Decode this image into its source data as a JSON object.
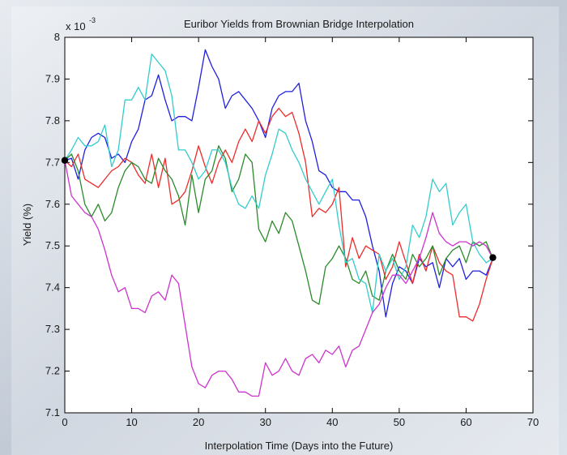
{
  "chart_data": {
    "type": "line",
    "title": "Euribor Yields from Brownian Bridge Interpolation",
    "xlabel": "Interpolation Time (Days into the Future)",
    "ylabel": "Yield (%)",
    "y_multiplier_label": "x 10",
    "y_multiplier_exponent": "-3",
    "xlim": [
      0,
      70
    ],
    "ylim": [
      7.1,
      8.0
    ],
    "x_ticks": [
      0,
      10,
      20,
      30,
      40,
      50,
      60,
      70
    ],
    "x_tick_labels": [
      "0",
      "10",
      "20",
      "30",
      "40",
      "50",
      "60",
      "70"
    ],
    "y_ticks": [
      7.1,
      7.2,
      7.3,
      7.4,
      7.5,
      7.6,
      7.7,
      7.8,
      7.9,
      8.0
    ],
    "y_tick_labels": [
      "7.1",
      "7.2",
      "7.3",
      "7.4",
      "7.5",
      "7.6",
      "7.7",
      "7.8",
      "7.9",
      "8"
    ],
    "grid": false,
    "legend": "none",
    "series": [
      {
        "color": "#1f1fe0",
        "x": [
          0,
          1,
          2,
          3,
          4,
          5,
          6,
          7,
          8,
          9,
          10,
          11,
          12,
          13,
          14,
          15,
          16,
          17,
          18,
          19,
          20,
          21,
          22,
          23,
          24,
          25,
          26,
          27,
          28,
          29,
          30,
          31,
          32,
          33,
          34,
          35,
          36,
          37,
          38,
          39,
          40,
          41,
          42,
          43,
          44,
          45,
          46,
          47,
          48,
          49,
          50,
          51,
          52,
          53,
          54,
          55,
          56,
          57,
          58,
          59,
          60,
          61,
          62,
          63,
          64
        ],
        "y": [
          7.705,
          7.71,
          7.66,
          7.73,
          7.76,
          7.77,
          7.76,
          7.71,
          7.72,
          7.7,
          7.75,
          7.78,
          7.85,
          7.86,
          7.91,
          7.85,
          7.8,
          7.81,
          7.81,
          7.8,
          7.88,
          7.97,
          7.93,
          7.9,
          7.83,
          7.86,
          7.87,
          7.85,
          7.83,
          7.8,
          7.76,
          7.83,
          7.86,
          7.87,
          7.87,
          7.89,
          7.8,
          7.75,
          7.68,
          7.67,
          7.64,
          7.63,
          7.63,
          7.61,
          7.61,
          7.57,
          7.5,
          7.44,
          7.33,
          7.41,
          7.45,
          7.44,
          7.41,
          7.47,
          7.45,
          7.46,
          7.4,
          7.47,
          7.45,
          7.47,
          7.42,
          7.44,
          7.44,
          7.43,
          7.47
        ]
      },
      {
        "color": "#ee2b2b",
        "x": [
          0,
          1,
          2,
          3,
          4,
          5,
          6,
          7,
          8,
          9,
          10,
          11,
          12,
          13,
          14,
          15,
          16,
          17,
          18,
          19,
          20,
          21,
          22,
          23,
          24,
          25,
          26,
          27,
          28,
          29,
          30,
          31,
          32,
          33,
          34,
          35,
          36,
          37,
          38,
          39,
          40,
          41,
          42,
          43,
          44,
          45,
          46,
          47,
          48,
          49,
          50,
          51,
          52,
          53,
          54,
          55,
          56,
          57,
          58,
          59,
          60,
          61,
          62,
          63,
          64
        ],
        "y": [
          7.705,
          7.69,
          7.72,
          7.66,
          7.65,
          7.64,
          7.66,
          7.68,
          7.69,
          7.71,
          7.7,
          7.67,
          7.65,
          7.72,
          7.64,
          7.71,
          7.6,
          7.61,
          7.63,
          7.68,
          7.74,
          7.69,
          7.65,
          7.7,
          7.73,
          7.7,
          7.75,
          7.78,
          7.75,
          7.8,
          7.77,
          7.81,
          7.83,
          7.81,
          7.82,
          7.77,
          7.7,
          7.57,
          7.59,
          7.58,
          7.6,
          7.64,
          7.45,
          7.52,
          7.47,
          7.5,
          7.49,
          7.48,
          7.42,
          7.45,
          7.51,
          7.46,
          7.41,
          7.48,
          7.44,
          7.5,
          7.46,
          7.44,
          7.43,
          7.33,
          7.33,
          7.32,
          7.36,
          7.42,
          7.47
        ]
      },
      {
        "color": "#2a8a2a",
        "x": [
          0,
          1,
          2,
          3,
          4,
          5,
          6,
          7,
          8,
          9,
          10,
          11,
          12,
          13,
          14,
          15,
          16,
          17,
          18,
          19,
          20,
          21,
          22,
          23,
          24,
          25,
          26,
          27,
          28,
          29,
          30,
          31,
          32,
          33,
          34,
          35,
          36,
          37,
          38,
          39,
          40,
          41,
          42,
          43,
          44,
          45,
          46,
          47,
          48,
          49,
          50,
          51,
          52,
          53,
          54,
          55,
          56,
          57,
          58,
          59,
          60,
          61,
          62,
          63,
          64
        ],
        "y": [
          7.705,
          7.72,
          7.68,
          7.6,
          7.57,
          7.6,
          7.56,
          7.58,
          7.64,
          7.68,
          7.7,
          7.69,
          7.66,
          7.65,
          7.71,
          7.68,
          7.66,
          7.62,
          7.55,
          7.67,
          7.58,
          7.66,
          7.68,
          7.74,
          7.71,
          7.63,
          7.66,
          7.72,
          7.7,
          7.54,
          7.51,
          7.56,
          7.53,
          7.58,
          7.56,
          7.5,
          7.44,
          7.37,
          7.36,
          7.45,
          7.47,
          7.5,
          7.47,
          7.42,
          7.41,
          7.44,
          7.38,
          7.37,
          7.44,
          7.48,
          7.44,
          7.42,
          7.48,
          7.45,
          7.47,
          7.5,
          7.43,
          7.47,
          7.49,
          7.5,
          7.46,
          7.51,
          7.5,
          7.51,
          7.47
        ]
      },
      {
        "color": "#33cccc",
        "x": [
          0,
          1,
          2,
          3,
          4,
          5,
          6,
          7,
          8,
          9,
          10,
          11,
          12,
          13,
          14,
          15,
          16,
          17,
          18,
          19,
          20,
          21,
          22,
          23,
          24,
          25,
          26,
          27,
          28,
          29,
          30,
          31,
          32,
          33,
          34,
          35,
          36,
          37,
          38,
          39,
          40,
          41,
          42,
          43,
          44,
          45,
          46,
          47,
          48,
          49,
          50,
          51,
          52,
          53,
          54,
          55,
          56,
          57,
          58,
          59,
          60,
          61,
          62,
          63,
          64
        ],
        "y": [
          7.705,
          7.73,
          7.76,
          7.74,
          7.74,
          7.75,
          7.79,
          7.69,
          7.73,
          7.85,
          7.85,
          7.88,
          7.85,
          7.96,
          7.94,
          7.92,
          7.86,
          7.73,
          7.73,
          7.7,
          7.66,
          7.68,
          7.73,
          7.73,
          7.7,
          7.64,
          7.6,
          7.59,
          7.62,
          7.59,
          7.67,
          7.72,
          7.78,
          7.77,
          7.73,
          7.7,
          7.66,
          7.63,
          7.6,
          7.63,
          7.66,
          7.55,
          7.46,
          7.47,
          7.42,
          7.41,
          7.34,
          7.48,
          7.44,
          7.47,
          7.42,
          7.45,
          7.55,
          7.52,
          7.57,
          7.66,
          7.63,
          7.65,
          7.55,
          7.58,
          7.6,
          7.51,
          7.48,
          7.46,
          7.47
        ]
      },
      {
        "color": "#cc33cc",
        "x": [
          0,
          1,
          2,
          3,
          4,
          5,
          6,
          7,
          8,
          9,
          10,
          11,
          12,
          13,
          14,
          15,
          16,
          17,
          18,
          19,
          20,
          21,
          22,
          23,
          24,
          25,
          26,
          27,
          28,
          29,
          30,
          31,
          32,
          33,
          34,
          35,
          36,
          37,
          38,
          39,
          40,
          41,
          42,
          43,
          44,
          45,
          46,
          47,
          48,
          49,
          50,
          51,
          52,
          53,
          54,
          55,
          56,
          57,
          58,
          59,
          60,
          61,
          62,
          63,
          64
        ],
        "y": [
          7.705,
          7.62,
          7.6,
          7.58,
          7.57,
          7.54,
          7.49,
          7.43,
          7.39,
          7.4,
          7.35,
          7.35,
          7.34,
          7.38,
          7.39,
          7.37,
          7.43,
          7.41,
          7.31,
          7.21,
          7.17,
          7.16,
          7.19,
          7.2,
          7.2,
          7.18,
          7.15,
          7.15,
          7.14,
          7.14,
          7.22,
          7.19,
          7.2,
          7.23,
          7.2,
          7.19,
          7.23,
          7.24,
          7.22,
          7.25,
          7.24,
          7.26,
          7.21,
          7.25,
          7.26,
          7.3,
          7.34,
          7.36,
          7.4,
          7.43,
          7.43,
          7.41,
          7.44,
          7.47,
          7.52,
          7.58,
          7.53,
          7.51,
          7.5,
          7.51,
          7.51,
          7.5,
          7.51,
          7.5,
          7.47
        ]
      }
    ],
    "endpoints": [
      {
        "x": 0,
        "y": 7.705
      },
      {
        "x": 64,
        "y": 7.472
      }
    ]
  }
}
